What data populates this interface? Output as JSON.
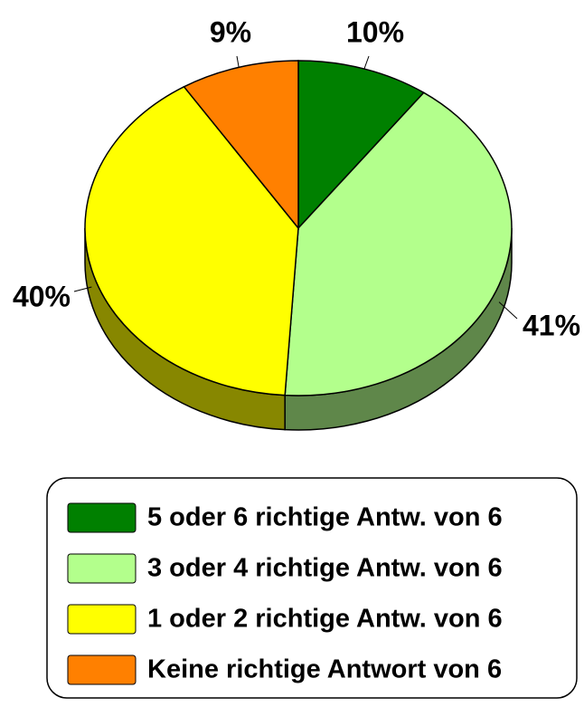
{
  "chart_data": {
    "type": "pie",
    "categories": [
      "5 oder 6 richtige Antw. von 6",
      "3 oder 4 richtige Antw. von 6",
      "1 oder 2 richtige Antw. von 6",
      "Keine richtige Antwort von 6"
    ],
    "values": [
      10,
      41,
      40,
      9
    ],
    "value_labels": [
      "10%",
      "41%",
      "40%",
      "9%"
    ],
    "colors": [
      "#008000",
      "#b3ff8c",
      "#ffff00",
      "#ff8000"
    ],
    "legend": "bottom"
  }
}
